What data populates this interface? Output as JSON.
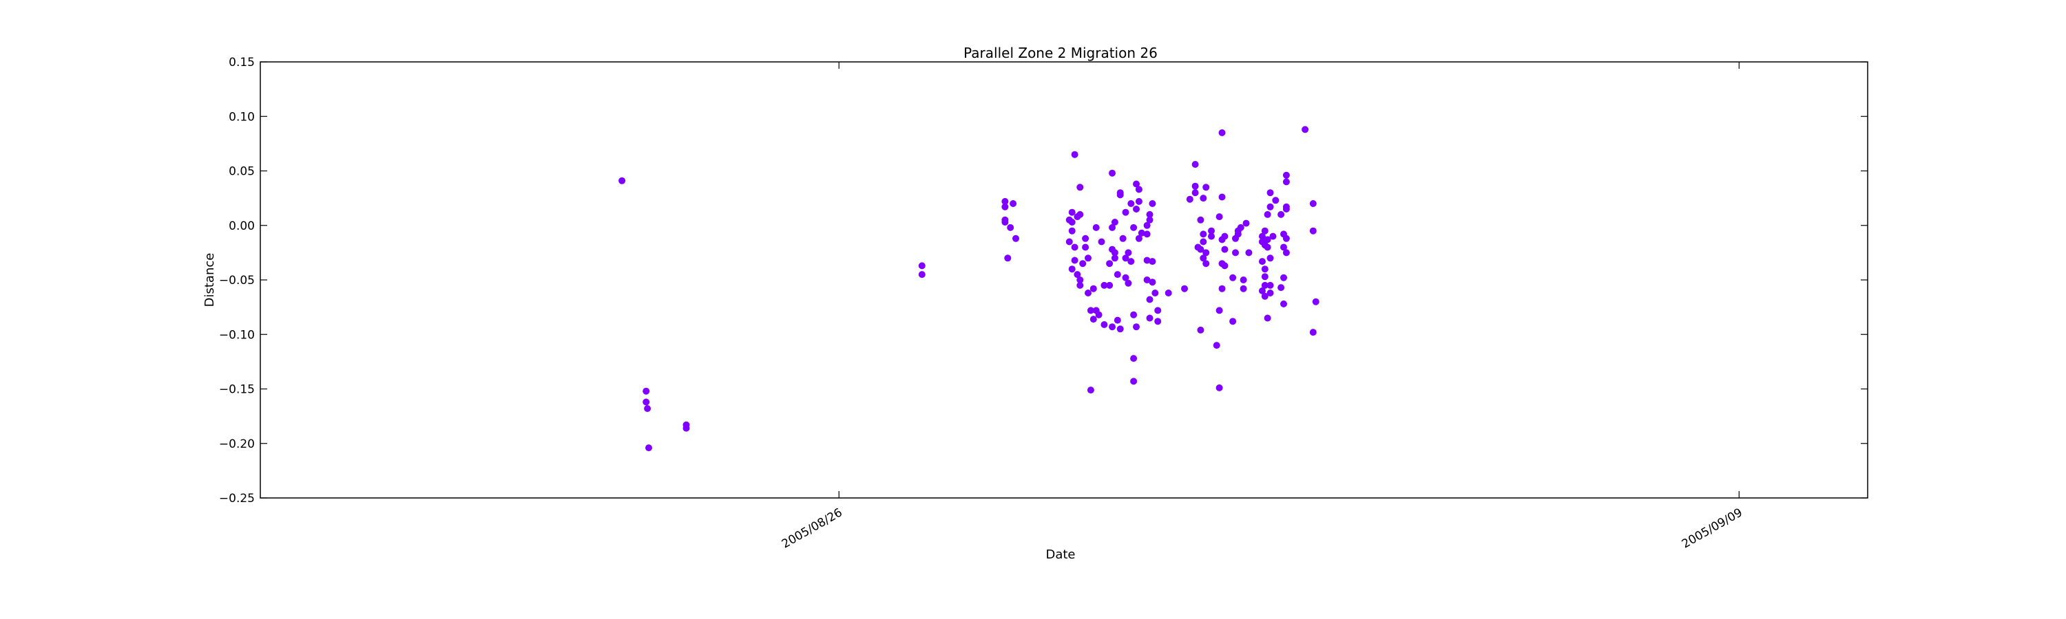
{
  "chart_data": {
    "type": "scatter",
    "title": "Parallel Zone 2 Migration 26",
    "xlabel": "Date",
    "ylabel": "Distance",
    "xlim": [
      "2005-08-17",
      "2005-09-11"
    ],
    "ylim": [
      -0.25,
      0.15
    ],
    "x_ticks": [
      {
        "value": "2005-08-26",
        "label": "2005/08/26"
      },
      {
        "value": "2005-09-09",
        "label": "2005/09/09"
      }
    ],
    "y_ticks": [
      {
        "value": 0.15,
        "label": "0.15"
      },
      {
        "value": 0.1,
        "label": "0.10"
      },
      {
        "value": 0.05,
        "label": "0.05"
      },
      {
        "value": 0.0,
        "label": "0.00"
      },
      {
        "value": -0.05,
        "label": "−0.05"
      },
      {
        "value": -0.1,
        "label": "−0.10"
      },
      {
        "value": -0.15,
        "label": "−0.15"
      },
      {
        "value": -0.2,
        "label": "−0.20"
      },
      {
        "value": -0.25,
        "label": "−0.25"
      }
    ],
    "grid": false,
    "marker_color": "#7f00ff",
    "series": [
      {
        "points": [
          {
            "x": "2005-08-22T15:00",
            "y": 0.041
          },
          {
            "x": "2005-08-23T00:00",
            "y": -0.152
          },
          {
            "x": "2005-08-23T00:00",
            "y": -0.162
          },
          {
            "x": "2005-08-23T00:30",
            "y": -0.168
          },
          {
            "x": "2005-08-23T01:00",
            "y": -0.204
          },
          {
            "x": "2005-08-23T15:00",
            "y": -0.183
          },
          {
            "x": "2005-08-23T15:00",
            "y": -0.186
          },
          {
            "x": "2005-08-27T07:00",
            "y": -0.037
          },
          {
            "x": "2005-08-27T07:00",
            "y": -0.045
          },
          {
            "x": "2005-08-28T14:00",
            "y": 0.022
          },
          {
            "x": "2005-08-28T14:00",
            "y": 0.017
          },
          {
            "x": "2005-08-28T14:00",
            "y": 0.005
          },
          {
            "x": "2005-08-28T14:00",
            "y": 0.003
          },
          {
            "x": "2005-08-28T15:00",
            "y": -0.03
          },
          {
            "x": "2005-08-28T16:00",
            "y": -0.002
          },
          {
            "x": "2005-08-28T17:00",
            "y": 0.02
          },
          {
            "x": "2005-08-28T18:00",
            "y": -0.012
          },
          {
            "x": "2005-08-29T14:00",
            "y": -0.015
          },
          {
            "x": "2005-08-29T14:00",
            "y": 0.005
          },
          {
            "x": "2005-08-29T15:00",
            "y": 0.012
          },
          {
            "x": "2005-08-29T15:00",
            "y": 0.003
          },
          {
            "x": "2005-08-29T15:00",
            "y": -0.04
          },
          {
            "x": "2005-08-29T15:00",
            "y": -0.005
          },
          {
            "x": "2005-08-29T16:00",
            "y": -0.032
          },
          {
            "x": "2005-08-29T16:00",
            "y": 0.065
          },
          {
            "x": "2005-08-29T16:00",
            "y": -0.02
          },
          {
            "x": "2005-08-29T17:00",
            "y": 0.008
          },
          {
            "x": "2005-08-29T17:00",
            "y": -0.045
          },
          {
            "x": "2005-08-29T18:00",
            "y": 0.01
          },
          {
            "x": "2005-08-29T18:00",
            "y": -0.05
          },
          {
            "x": "2005-08-29T18:00",
            "y": 0.035
          },
          {
            "x": "2005-08-29T18:00",
            "y": -0.055
          },
          {
            "x": "2005-08-29T19:00",
            "y": -0.035
          },
          {
            "x": "2005-08-29T20:00",
            "y": -0.012
          },
          {
            "x": "2005-08-29T20:00",
            "y": -0.02
          },
          {
            "x": "2005-08-29T21:00",
            "y": -0.03
          },
          {
            "x": "2005-08-29T21:00",
            "y": -0.062
          },
          {
            "x": "2005-08-29T22:00",
            "y": -0.078
          },
          {
            "x": "2005-08-29T22:00",
            "y": -0.151
          },
          {
            "x": "2005-08-29T23:00",
            "y": -0.086
          },
          {
            "x": "2005-08-29T23:00",
            "y": -0.058
          },
          {
            "x": "2005-08-30T00:00",
            "y": -0.078
          },
          {
            "x": "2005-08-30T00:00",
            "y": -0.002
          },
          {
            "x": "2005-08-30T01:00",
            "y": -0.082
          },
          {
            "x": "2005-08-30T02:00",
            "y": -0.015
          },
          {
            "x": "2005-08-30T03:00",
            "y": -0.055
          },
          {
            "x": "2005-08-30T03:00",
            "y": -0.091
          },
          {
            "x": "2005-08-30T05:00",
            "y": -0.055
          },
          {
            "x": "2005-08-30T05:00",
            "y": -0.035
          },
          {
            "x": "2005-08-30T06:00",
            "y": 0.048
          },
          {
            "x": "2005-08-30T06:00",
            "y": -0.022
          },
          {
            "x": "2005-08-30T06:00",
            "y": -0.002
          },
          {
            "x": "2005-08-30T06:00",
            "y": -0.093
          },
          {
            "x": "2005-08-30T07:00",
            "y": -0.025
          },
          {
            "x": "2005-08-30T07:00",
            "y": 0.003
          },
          {
            "x": "2005-08-30T07:00",
            "y": -0.03
          },
          {
            "x": "2005-08-30T08:00",
            "y": -0.087
          },
          {
            "x": "2005-08-30T08:00",
            "y": -0.045
          },
          {
            "x": "2005-08-30T09:00",
            "y": -0.095
          },
          {
            "x": "2005-08-30T09:00",
            "y": 0.028
          },
          {
            "x": "2005-08-30T09:00",
            "y": 0.03
          },
          {
            "x": "2005-08-30T10:00",
            "y": -0.012
          },
          {
            "x": "2005-08-30T11:00",
            "y": -0.03
          },
          {
            "x": "2005-08-30T11:00",
            "y": -0.048
          },
          {
            "x": "2005-08-30T11:00",
            "y": 0.012
          },
          {
            "x": "2005-08-30T12:00",
            "y": -0.053
          },
          {
            "x": "2005-08-30T12:00",
            "y": -0.025
          },
          {
            "x": "2005-08-30T13:00",
            "y": 0.02
          },
          {
            "x": "2005-08-30T13:00",
            "y": -0.033
          },
          {
            "x": "2005-08-30T14:00",
            "y": -0.002
          },
          {
            "x": "2005-08-30T14:00",
            "y": -0.082
          },
          {
            "x": "2005-08-30T14:00",
            "y": -0.122
          },
          {
            "x": "2005-08-30T14:00",
            "y": -0.143
          },
          {
            "x": "2005-08-30T15:00",
            "y": 0.038
          },
          {
            "x": "2005-08-30T15:00",
            "y": 0.015
          },
          {
            "x": "2005-08-30T15:00",
            "y": -0.093
          },
          {
            "x": "2005-08-30T16:00",
            "y": 0.033
          },
          {
            "x": "2005-08-30T16:00",
            "y": 0.022
          },
          {
            "x": "2005-08-30T16:00",
            "y": -0.012
          },
          {
            "x": "2005-08-30T17:00",
            "y": -0.007
          },
          {
            "x": "2005-08-30T19:00",
            "y": 0.0
          },
          {
            "x": "2005-08-30T19:00",
            "y": -0.008
          },
          {
            "x": "2005-08-30T19:00",
            "y": -0.032
          },
          {
            "x": "2005-08-30T19:00",
            "y": -0.05
          },
          {
            "x": "2005-08-30T20:00",
            "y": 0.005
          },
          {
            "x": "2005-08-30T20:00",
            "y": 0.01
          },
          {
            "x": "2005-08-30T20:00",
            "y": -0.068
          },
          {
            "x": "2005-08-30T20:00",
            "y": -0.085
          },
          {
            "x": "2005-08-30T21:00",
            "y": 0.02
          },
          {
            "x": "2005-08-30T21:00",
            "y": -0.033
          },
          {
            "x": "2005-08-30T21:00",
            "y": -0.052
          },
          {
            "x": "2005-08-30T22:00",
            "y": -0.062
          },
          {
            "x": "2005-08-30T23:00",
            "y": -0.078
          },
          {
            "x": "2005-08-30T23:00",
            "y": -0.088
          },
          {
            "x": "2005-08-31T03:00",
            "y": -0.062
          },
          {
            "x": "2005-08-31T09:00",
            "y": -0.058
          },
          {
            "x": "2005-08-31T11:00",
            "y": 0.024
          },
          {
            "x": "2005-08-31T13:00",
            "y": 0.056
          },
          {
            "x": "2005-08-31T13:00",
            "y": 0.036
          },
          {
            "x": "2005-08-31T13:00",
            "y": 0.03
          },
          {
            "x": "2005-08-31T14:00",
            "y": -0.02
          },
          {
            "x": "2005-08-31T15:00",
            "y": 0.005
          },
          {
            "x": "2005-08-31T15:00",
            "y": -0.022
          },
          {
            "x": "2005-08-31T15:00",
            "y": -0.096
          },
          {
            "x": "2005-08-31T16:00",
            "y": 0.025
          },
          {
            "x": "2005-08-31T16:00",
            "y": -0.008
          },
          {
            "x": "2005-08-31T16:00",
            "y": -0.015
          },
          {
            "x": "2005-08-31T16:00",
            "y": -0.03
          },
          {
            "x": "2005-08-31T17:00",
            "y": 0.035
          },
          {
            "x": "2005-08-31T17:00",
            "y": -0.025
          },
          {
            "x": "2005-08-31T17:00",
            "y": -0.035
          },
          {
            "x": "2005-08-31T19:00",
            "y": -0.005
          },
          {
            "x": "2005-08-31T19:00",
            "y": -0.01
          },
          {
            "x": "2005-08-31T21:00",
            "y": -0.11
          },
          {
            "x": "2005-08-31T22:00",
            "y": -0.149
          },
          {
            "x": "2005-08-31T22:00",
            "y": -0.078
          },
          {
            "x": "2005-08-31T22:00",
            "y": 0.008
          },
          {
            "x": "2005-08-31T23:00",
            "y": 0.085
          },
          {
            "x": "2005-08-31T23:00",
            "y": 0.026
          },
          {
            "x": "2005-08-31T23:00",
            "y": -0.013
          },
          {
            "x": "2005-08-31T23:00",
            "y": -0.035
          },
          {
            "x": "2005-08-31T23:00",
            "y": -0.058
          },
          {
            "x": "2005-09-01T00:00",
            "y": -0.01
          },
          {
            "x": "2005-09-01T00:00",
            "y": -0.022
          },
          {
            "x": "2005-09-01T00:00",
            "y": -0.037
          },
          {
            "x": "2005-09-01T03:00",
            "y": -0.048
          },
          {
            "x": "2005-09-01T03:00",
            "y": -0.088
          },
          {
            "x": "2005-09-01T04:00",
            "y": -0.012
          },
          {
            "x": "2005-09-01T04:00",
            "y": -0.025
          },
          {
            "x": "2005-09-01T05:00",
            "y": -0.005
          },
          {
            "x": "2005-09-01T05:00",
            "y": -0.008
          },
          {
            "x": "2005-09-01T06:00",
            "y": -0.002
          },
          {
            "x": "2005-09-01T07:00",
            "y": -0.05
          },
          {
            "x": "2005-09-01T07:00",
            "y": -0.058
          },
          {
            "x": "2005-09-01T08:00",
            "y": 0.002
          },
          {
            "x": "2005-09-01T09:00",
            "y": -0.025
          },
          {
            "x": "2005-09-01T14:00",
            "y": -0.01
          },
          {
            "x": "2005-09-01T14:00",
            "y": -0.015
          },
          {
            "x": "2005-09-01T14:00",
            "y": -0.033
          },
          {
            "x": "2005-09-01T14:00",
            "y": -0.06
          },
          {
            "x": "2005-09-01T15:00",
            "y": -0.005
          },
          {
            "x": "2005-09-01T15:00",
            "y": -0.018
          },
          {
            "x": "2005-09-01T15:00",
            "y": -0.04
          },
          {
            "x": "2005-09-01T15:00",
            "y": -0.047
          },
          {
            "x": "2005-09-01T15:00",
            "y": -0.055
          },
          {
            "x": "2005-09-01T15:00",
            "y": -0.065
          },
          {
            "x": "2005-09-01T16:00",
            "y": 0.01
          },
          {
            "x": "2005-09-01T16:00",
            "y": -0.013
          },
          {
            "x": "2005-09-01T16:00",
            "y": -0.02
          },
          {
            "x": "2005-09-01T16:00",
            "y": -0.085
          },
          {
            "x": "2005-09-01T17:00",
            "y": 0.03
          },
          {
            "x": "2005-09-01T17:00",
            "y": 0.017
          },
          {
            "x": "2005-09-01T17:00",
            "y": -0.03
          },
          {
            "x": "2005-09-01T17:00",
            "y": -0.055
          },
          {
            "x": "2005-09-01T17:00",
            "y": -0.062
          },
          {
            "x": "2005-09-01T18:00",
            "y": -0.01
          },
          {
            "x": "2005-09-01T19:00",
            "y": 0.023
          },
          {
            "x": "2005-09-01T21:00",
            "y": -0.057
          },
          {
            "x": "2005-09-01T21:00",
            "y": 0.01
          },
          {
            "x": "2005-09-01T22:00",
            "y": -0.02
          },
          {
            "x": "2005-09-01T22:00",
            "y": -0.008
          },
          {
            "x": "2005-09-01T22:00",
            "y": -0.048
          },
          {
            "x": "2005-09-01T22:00",
            "y": -0.072
          },
          {
            "x": "2005-09-01T23:00",
            "y": 0.046
          },
          {
            "x": "2005-09-01T23:00",
            "y": 0.04
          },
          {
            "x": "2005-09-01T23:00",
            "y": 0.017
          },
          {
            "x": "2005-09-01T23:00",
            "y": 0.015
          },
          {
            "x": "2005-09-01T23:00",
            "y": -0.012
          },
          {
            "x": "2005-09-01T23:00",
            "y": -0.025
          },
          {
            "x": "2005-09-02T06:00",
            "y": 0.088
          },
          {
            "x": "2005-09-02T09:00",
            "y": 0.02
          },
          {
            "x": "2005-09-02T09:00",
            "y": -0.005
          },
          {
            "x": "2005-09-02T09:00",
            "y": -0.098
          },
          {
            "x": "2005-09-02T10:00",
            "y": -0.07
          }
        ]
      }
    ]
  }
}
